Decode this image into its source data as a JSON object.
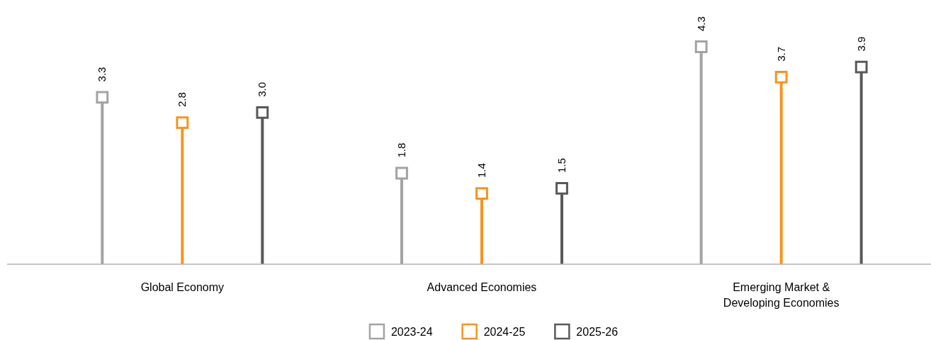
{
  "chart_data": {
    "type": "lollipop",
    "categories": [
      "Global Economy",
      "Advanced Economies",
      "Emerging Market & Developing Economies"
    ],
    "series": [
      {
        "name": "2023-24",
        "color": "#a3a3a3",
        "values": [
          3.3,
          1.8,
          4.3
        ],
        "value_labels": [
          "3.3",
          "1.8",
          "4.3"
        ]
      },
      {
        "name": "2024-25",
        "color": "#f7941d",
        "values": [
          2.8,
          1.4,
          3.7
        ],
        "value_labels": [
          "2.8",
          "1.4",
          "3.7"
        ]
      },
      {
        "name": "2025-26",
        "color": "#595959",
        "values": [
          3.0,
          1.5,
          3.9
        ],
        "value_labels": [
          "3.0",
          "1.5",
          "3.9"
        ]
      }
    ],
    "legend": "bottom",
    "marker": "square"
  }
}
